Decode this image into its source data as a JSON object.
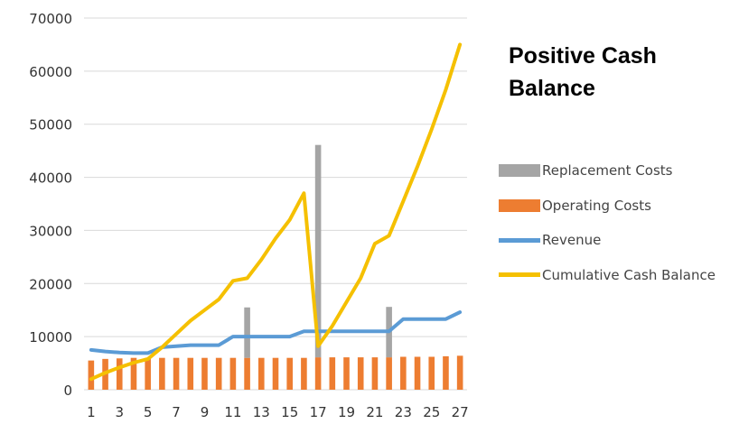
{
  "chart_data": {
    "type": "bar",
    "title": "Positive Cash Balance",
    "xlabel": "",
    "ylabel": "",
    "ylim": [
      0,
      70000
    ],
    "yticks": [
      0,
      10000,
      20000,
      30000,
      40000,
      50000,
      60000,
      70000
    ],
    "x": [
      1,
      2,
      3,
      4,
      5,
      6,
      7,
      8,
      9,
      10,
      11,
      12,
      13,
      14,
      15,
      16,
      17,
      18,
      19,
      20,
      21,
      22,
      23,
      24,
      25,
      26,
      27
    ],
    "xtick_labels": [
      "1",
      "3",
      "5",
      "7",
      "9",
      "11",
      "13",
      "15",
      "17",
      "19",
      "21",
      "23",
      "25",
      "27"
    ],
    "grid": "horizontal",
    "legend_position": "right",
    "series": [
      {
        "name": "Replacement Costs",
        "kind": "bar",
        "color": "#a5a5a5",
        "values": [
          0,
          0,
          0,
          0,
          0,
          0,
          0,
          0,
          0,
          0,
          0,
          9500,
          0,
          0,
          0,
          0,
          40000,
          0,
          0,
          0,
          0,
          9500,
          0,
          0,
          0,
          0,
          0
        ]
      },
      {
        "name": "Operating Costs",
        "kind": "bar",
        "color": "#ed7d31",
        "values": [
          5500,
          5800,
          5900,
          6000,
          6000,
          6000,
          6000,
          6000,
          6000,
          6000,
          6000,
          6000,
          6000,
          6000,
          6000,
          6000,
          6100,
          6100,
          6100,
          6100,
          6100,
          6100,
          6200,
          6200,
          6200,
          6300,
          6400
        ]
      },
      {
        "name": "Revenue",
        "kind": "line",
        "color": "#5b9bd5",
        "values": [
          7500,
          7200,
          7000,
          6900,
          6900,
          8000,
          8200,
          8400,
          8400,
          8400,
          10000,
          10000,
          10000,
          10000,
          10000,
          11000,
          11000,
          11000,
          11000,
          11000,
          11000,
          11000,
          13300,
          13300,
          13300,
          13300,
          14600
        ]
      },
      {
        "name": "Cumulative Cash Balance",
        "kind": "line",
        "color": "#f5c000",
        "values": [
          2000,
          3200,
          4200,
          5100,
          5800,
          8000,
          10500,
          13000,
          15000,
          17000,
          20500,
          21000,
          24500,
          28500,
          32000,
          37000,
          8200,
          12000,
          16500,
          21000,
          27500,
          29000,
          35500,
          42000,
          49000,
          56500,
          65000
        ]
      }
    ]
  }
}
